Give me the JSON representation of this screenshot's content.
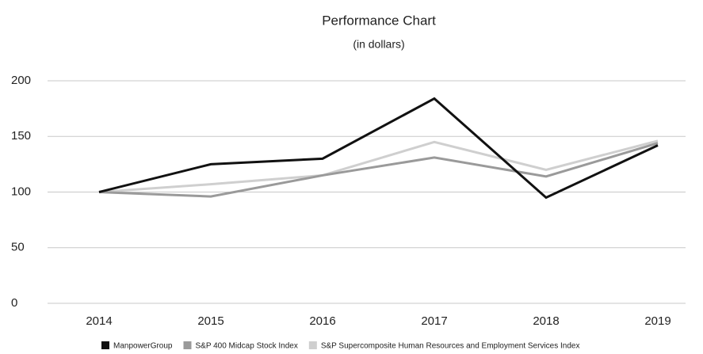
{
  "chart_data": {
    "type": "line",
    "title": "Performance Chart",
    "subtitle": "(in dollars)",
    "categories": [
      "2014",
      "2015",
      "2016",
      "2017",
      "2018",
      "2019"
    ],
    "series": [
      {
        "name": "ManpowerGroup",
        "color": "#111111",
        "values": [
          100,
          125,
          130,
          184,
          95,
          142
        ]
      },
      {
        "name": "S&P 400 Midcap Stock Index",
        "color": "#9a9a9a",
        "values": [
          100,
          96,
          115,
          131,
          114,
          144
        ]
      },
      {
        "name": "S&P Supercomposite Human Resources and Employment Services Index",
        "color": "#cfcfcf",
        "values": [
          100,
          107,
          115,
          145,
          120,
          146
        ]
      }
    ],
    "ylim": [
      0,
      200
    ],
    "yticks": [
      0,
      50,
      100,
      150,
      200
    ],
    "grid": true,
    "legend": "bottom"
  }
}
